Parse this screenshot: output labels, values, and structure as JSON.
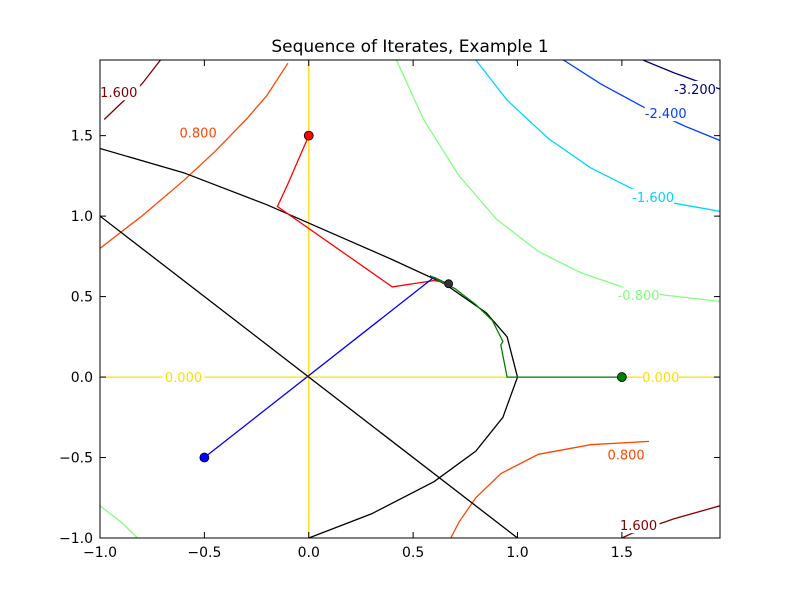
{
  "chart_data": {
    "type": "line",
    "title": "Sequence of Iterates, Example 1",
    "xlabel": "",
    "ylabel": "",
    "xlim": [
      -1.0,
      1.97
    ],
    "ylim": [
      -1.0,
      1.97
    ],
    "grid": false,
    "x_ticks": [
      -1.0,
      -0.5,
      0.0,
      0.5,
      1.0,
      1.5
    ],
    "x_tick_labels": [
      "−1.0",
      "−0.5",
      "0.0",
      "0.5",
      "1.0",
      "1.5"
    ],
    "y_ticks": [
      -1.0,
      -0.5,
      0.0,
      0.5,
      1.0,
      1.5
    ],
    "y_tick_labels": [
      "−1.0",
      "−0.5",
      "0.0",
      "0.5",
      "1.0",
      "1.5"
    ],
    "contours": [
      {
        "level": "1.600",
        "color": "#7f0000",
        "points": [
          [
            -0.98,
            1.6
          ],
          [
            -0.9,
            1.7
          ],
          [
            -0.8,
            1.82
          ],
          [
            -0.71,
            1.97
          ]
        ],
        "label_at": [
          -0.91,
          1.77
        ]
      },
      {
        "level": "0.800",
        "color": "#ff4500",
        "points": [
          [
            -1.0,
            0.8
          ],
          [
            -0.8,
            1.0
          ],
          [
            -0.6,
            1.22
          ],
          [
            -0.45,
            1.4
          ],
          [
            -0.3,
            1.6
          ],
          [
            -0.2,
            1.75
          ],
          [
            -0.1,
            1.95
          ]
        ],
        "label_at": [
          -0.53,
          1.52
        ]
      },
      {
        "level": "-0.800",
        "color": "#80ff80",
        "points": [
          [
            0.42,
            1.97
          ],
          [
            0.55,
            1.6
          ],
          [
            0.72,
            1.25
          ],
          [
            0.9,
            0.98
          ],
          [
            1.1,
            0.78
          ],
          [
            1.3,
            0.65
          ],
          [
            1.5,
            0.56
          ],
          [
            1.7,
            0.51
          ],
          [
            1.97,
            0.47
          ]
        ],
        "label_at": [
          1.58,
          0.51
        ]
      },
      {
        "level": "-1.600",
        "color": "#00d4ff",
        "points": [
          [
            0.8,
            1.97
          ],
          [
            0.95,
            1.72
          ],
          [
            1.15,
            1.48
          ],
          [
            1.35,
            1.3
          ],
          [
            1.55,
            1.17
          ],
          [
            1.75,
            1.08
          ],
          [
            1.97,
            1.03
          ]
        ],
        "label_at": [
          1.65,
          1.12
        ]
      },
      {
        "level": "-2.400",
        "color": "#0040ff",
        "points": [
          [
            1.22,
            1.97
          ],
          [
            1.4,
            1.82
          ],
          [
            1.6,
            1.68
          ],
          [
            1.8,
            1.56
          ],
          [
            1.97,
            1.47
          ]
        ],
        "label_at": [
          1.71,
          1.64
        ]
      },
      {
        "level": "-3.200",
        "color": "#000080",
        "points": [
          [
            1.6,
            1.97
          ],
          [
            1.75,
            1.89
          ],
          [
            1.9,
            1.82
          ],
          [
            1.97,
            1.79
          ]
        ],
        "label_at": [
          1.85,
          1.79
        ]
      },
      {
        "level": "0.800",
        "color": "#ff4500",
        "points": [
          [
            1.63,
            -0.4
          ],
          [
            1.35,
            -0.42
          ],
          [
            1.1,
            -0.48
          ],
          [
            0.92,
            -0.6
          ],
          [
            0.8,
            -0.75
          ],
          [
            0.72,
            -0.9
          ],
          [
            0.68,
            -1.0
          ]
        ],
        "label_at": [
          1.52,
          -0.48
        ]
      },
      {
        "level": "1.600",
        "color": "#7f0000",
        "points": [
          [
            1.97,
            -0.8
          ],
          [
            1.75,
            -0.88
          ],
          [
            1.55,
            -0.97
          ],
          [
            1.5,
            -1.0
          ]
        ],
        "label_at": [
          1.58,
          -0.92
        ]
      },
      {
        "level": "-0.800",
        "color": "#80ff80",
        "points": [
          [
            -1.0,
            -0.8
          ],
          [
            -0.9,
            -0.9
          ],
          [
            -0.82,
            -1.0
          ]
        ],
        "label_at": null
      },
      {
        "level": "0.000",
        "color": "#ffdd00",
        "points": [
          [
            -1.0,
            0.0
          ],
          [
            1.97,
            0.0
          ]
        ],
        "label_at": [
          -0.6,
          0.0
        ]
      },
      {
        "level": "0.000",
        "color": "#ffdd00",
        "points": [
          [
            0.0,
            -1.0
          ],
          [
            0.0,
            1.97
          ]
        ],
        "label_at": null
      }
    ],
    "contour_extra_labels": [
      {
        "text": "0.000",
        "color": "#ffdd00",
        "at": [
          1.6,
          0.0
        ]
      }
    ],
    "constraint_curves": [
      {
        "color": "#000000",
        "points": [
          [
            -1.0,
            1.42
          ],
          [
            -0.6,
            1.27
          ],
          [
            -0.2,
            1.07
          ],
          [
            0.1,
            0.9
          ],
          [
            0.4,
            0.73
          ],
          [
            0.65,
            0.58
          ],
          [
            0.85,
            0.4
          ],
          [
            0.95,
            0.25
          ],
          [
            1.0,
            0.0
          ],
          [
            0.93,
            -0.25
          ],
          [
            0.8,
            -0.46
          ],
          [
            0.6,
            -0.65
          ],
          [
            0.3,
            -0.85
          ],
          [
            0.0,
            -1.0
          ]
        ]
      },
      {
        "color": "#000000",
        "points": [
          [
            -1.0,
            1.0
          ],
          [
            1.0,
            -1.0
          ]
        ]
      }
    ],
    "series": [
      {
        "color": "#ff0000",
        "points": [
          [
            0.0,
            1.5
          ],
          [
            -0.1,
            1.2
          ],
          [
            -0.15,
            1.06
          ],
          [
            0.4,
            0.56
          ],
          [
            0.6,
            0.6
          ],
          [
            0.68,
            0.58
          ]
        ],
        "start": [
          0.0,
          1.5
        ]
      },
      {
        "color": "#0000ff",
        "points": [
          [
            -0.5,
            -0.5
          ],
          [
            0.6,
            0.62
          ],
          [
            0.68,
            0.57
          ]
        ],
        "start": [
          -0.5,
          -0.5
        ]
      },
      {
        "color": "#008000",
        "points": [
          [
            1.5,
            0.0
          ],
          [
            0.95,
            0.0
          ],
          [
            0.92,
            0.2
          ],
          [
            0.93,
            0.22
          ],
          [
            0.88,
            0.35
          ],
          [
            0.8,
            0.45
          ],
          [
            0.7,
            0.55
          ],
          [
            0.58,
            0.63
          ],
          [
            0.63,
            0.6
          ],
          [
            0.68,
            0.57
          ]
        ],
        "start": [
          1.5,
          0.0
        ]
      }
    ],
    "solution_point": [
      0.67,
      0.58
    ]
  }
}
